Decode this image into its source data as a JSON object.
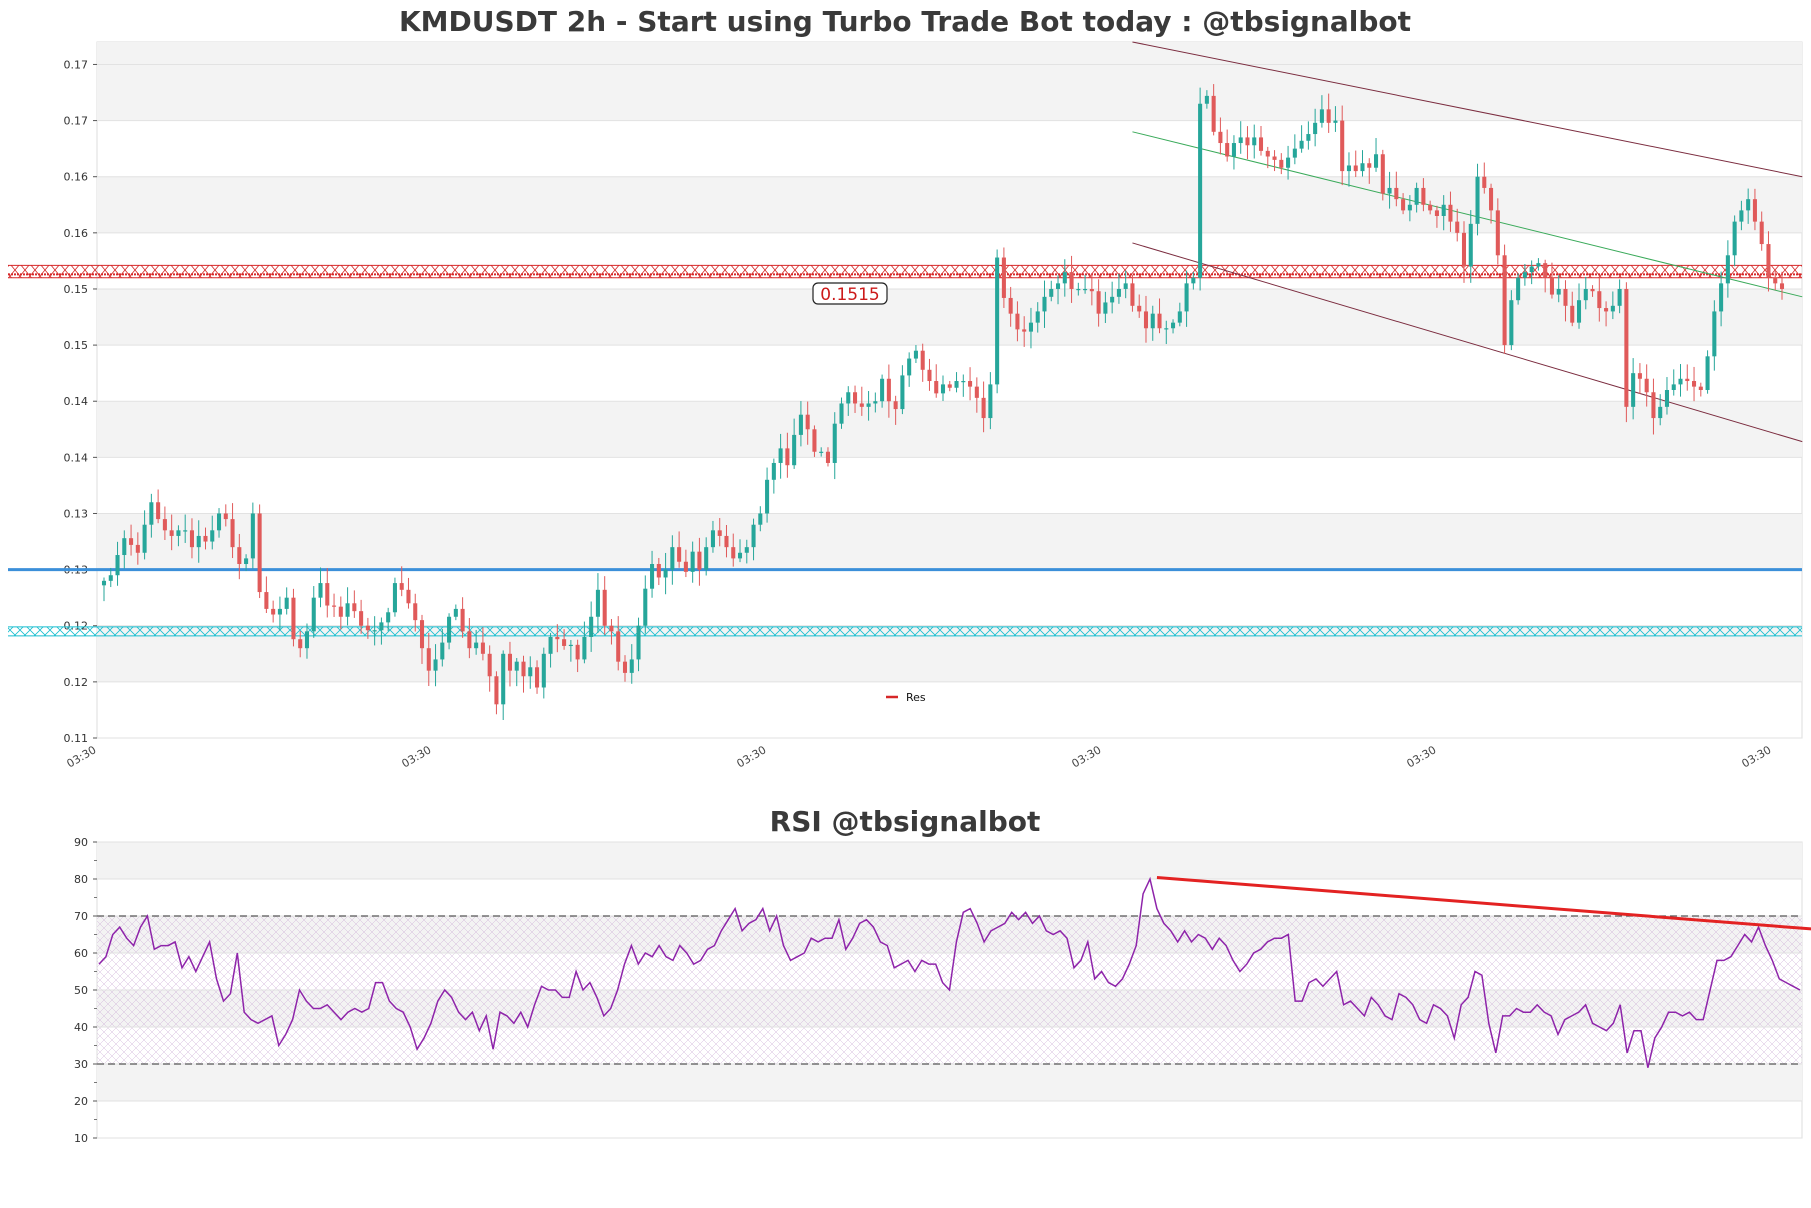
{
  "colors": {
    "up": "#26a69a",
    "down": "#e05a5a",
    "resistance": "#d62728",
    "support": "#17becf",
    "blue_line": "#3b8fd9",
    "channel": "#7b2c3f",
    "trend_green": "#3aaa5a",
    "rsi_line": "#8e24aa",
    "rsi_trend": "#e32222"
  },
  "chart_data": [
    {
      "type": "candlestick",
      "title": "KMDUSDT 2h - Start using Turbo Trade Bot today : @tbsignalbot",
      "ylim": [
        0.11,
        0.172
      ],
      "ytick_values": [
        0.11,
        0.115,
        0.12,
        0.125,
        0.13,
        0.135,
        0.14,
        0.145,
        0.15,
        0.155,
        0.16,
        0.165,
        0.17
      ],
      "ytick_labels": [
        "0.11",
        "0.12",
        "0.12",
        "0.13",
        "0.13",
        "0.14",
        "0.14",
        "0.15",
        "0.15",
        "0.16",
        "0.16",
        "0.17",
        "0.17"
      ],
      "xtick_labels": [
        "03:30",
        "03:30",
        "03:30",
        "03:30",
        "03:30",
        "03:30"
      ],
      "grid": true,
      "legend": {
        "entries": [
          "Res"
        ],
        "placement": "bottom-center"
      },
      "resistance_band": [
        0.151,
        0.1521
      ],
      "resistance_line": 0.1513,
      "resistance_label": "0.1515",
      "support_band": [
        0.1191,
        0.1199
      ],
      "horizontal_line": 0.125,
      "closes": [
        0.124,
        0.1245,
        0.1263,
        0.1278,
        0.1272,
        0.1265,
        0.129,
        0.131,
        0.1295,
        0.1285,
        0.128,
        0.1285,
        0.1285,
        0.127,
        0.128,
        0.1275,
        0.1285,
        0.13,
        0.1295,
        0.127,
        0.1255,
        0.126,
        0.13,
        0.123,
        0.1215,
        0.121,
        0.1215,
        0.1225,
        0.1188,
        0.118,
        0.1195,
        0.1225,
        0.1238,
        0.1218,
        0.1217,
        0.1208,
        0.122,
        0.1213,
        0.12,
        0.1196,
        0.1196,
        0.1203,
        0.1212,
        0.1238,
        0.1232,
        0.122,
        0.1205,
        0.118,
        0.116,
        0.117,
        0.1185,
        0.1208,
        0.1215,
        0.1195,
        0.118,
        0.1185,
        0.1175,
        0.1155,
        0.113,
        0.1175,
        0.116,
        0.1168,
        0.1155,
        0.1163,
        0.1145,
        0.1175,
        0.119,
        0.1188,
        0.1182,
        0.1183,
        0.117,
        0.119,
        0.1208,
        0.1232,
        0.12,
        0.1195,
        0.1168,
        0.1158,
        0.117,
        0.12,
        0.1233,
        0.1255,
        0.1243,
        0.125,
        0.127,
        0.1257,
        0.1248,
        0.1266,
        0.125,
        0.127,
        0.1285,
        0.128,
        0.127,
        0.126,
        0.1265,
        0.127,
        0.129,
        0.13,
        0.133,
        0.1345,
        0.1358,
        0.1343,
        0.137,
        0.1388,
        0.1375,
        0.1355,
        0.1355,
        0.1345,
        0.138,
        0.1398,
        0.1408,
        0.1398,
        0.1395,
        0.1398,
        0.14,
        0.142,
        0.14,
        0.1393,
        0.1423,
        0.1438,
        0.1445,
        0.1428,
        0.1418,
        0.1407,
        0.1415,
        0.1412,
        0.1418,
        0.1418,
        0.1413,
        0.1403,
        0.1385,
        0.1415,
        0.1528,
        0.1492,
        0.1478,
        0.1464,
        0.1462,
        0.147,
        0.148,
        0.1493,
        0.15,
        0.1505,
        0.1515,
        0.15,
        0.15,
        0.15,
        0.1498,
        0.1478,
        0.1488,
        0.1493,
        0.15,
        0.1505,
        0.1485,
        0.148,
        0.1465,
        0.1478,
        0.1465,
        0.1465,
        0.147,
        0.148,
        0.1505,
        0.151,
        0.1665,
        0.1672,
        0.164,
        0.163,
        0.1618,
        0.163,
        0.1635,
        0.1628,
        0.1635,
        0.1623,
        0.1618,
        0.1615,
        0.1608,
        0.1617,
        0.1625,
        0.1632,
        0.1638,
        0.1648,
        0.166,
        0.1648,
        0.165,
        0.1605,
        0.161,
        0.1605,
        0.1612,
        0.1608,
        0.162,
        0.1585,
        0.159,
        0.158,
        0.157,
        0.1575,
        0.159,
        0.1575,
        0.157,
        0.1565,
        0.1575,
        0.156,
        0.155,
        0.152,
        0.1558,
        0.16,
        0.159,
        0.157,
        0.153,
        0.145,
        0.149,
        0.151,
        0.1515,
        0.152,
        0.1523,
        0.151,
        0.1495,
        0.15,
        0.1485,
        0.147,
        0.149,
        0.15,
        0.1498,
        0.1483,
        0.148,
        0.1485,
        0.15,
        0.1395,
        0.1425,
        0.142,
        0.1408,
        0.1385,
        0.1395,
        0.141,
        0.1415,
        0.142,
        0.1418,
        0.1413,
        0.141,
        0.144,
        0.148,
        0.1505,
        0.153,
        0.156,
        0.157,
        0.158,
        0.156,
        0.154,
        0.151,
        0.1505,
        0.15
      ]
    },
    {
      "type": "line",
      "title": "RSI @tbsignalbot",
      "ylim": [
        10,
        90
      ],
      "ytick_values": [
        10,
        20,
        30,
        40,
        50,
        60,
        70,
        80,
        90
      ],
      "ytick_labels": [
        "10",
        "20",
        "30",
        "40",
        "50",
        "60",
        "70",
        "80",
        "90"
      ],
      "overbought": 70,
      "oversold": 30,
      "grid": true,
      "trendline": [
        [
          153,
          80.4
        ],
        [
          249,
          66.3
        ]
      ],
      "values": [
        57,
        59,
        65,
        67,
        64,
        62,
        67,
        70,
        61,
        62,
        62,
        63,
        56,
        59,
        55,
        59,
        63,
        53,
        47,
        49,
        60,
        44,
        42,
        41,
        42,
        43,
        35,
        38,
        42,
        50,
        47,
        45,
        45,
        46,
        44,
        42,
        44,
        45,
        44,
        45,
        52,
        52,
        47,
        45,
        44,
        40,
        34,
        37,
        41,
        47,
        50,
        48,
        44,
        42,
        44,
        39,
        43,
        34,
        44,
        43,
        41,
        44,
        40,
        46,
        51,
        50,
        50,
        48,
        48,
        55,
        50,
        52,
        48,
        43,
        45,
        50,
        57,
        62,
        57,
        60,
        59,
        62,
        59,
        58,
        62,
        60,
        57,
        58,
        61,
        62,
        66,
        69,
        72,
        66,
        68,
        69,
        72,
        66,
        70,
        62,
        58,
        59,
        60,
        64,
        63,
        64,
        64,
        69,
        61,
        64,
        68,
        69,
        67,
        63,
        62,
        56,
        57,
        58,
        55,
        58,
        57,
        57,
        52,
        50,
        63,
        71,
        72,
        68,
        63,
        66,
        67,
        68,
        71,
        69,
        71,
        68,
        70,
        66,
        65,
        66,
        64,
        56,
        58,
        63,
        53,
        55,
        52,
        51,
        53,
        57,
        62,
        76,
        80,
        72,
        68,
        66,
        63,
        66,
        63,
        65,
        64,
        61,
        64,
        62,
        58,
        55,
        57,
        60,
        61,
        63,
        64,
        64,
        65,
        47,
        47,
        52,
        53,
        51,
        53,
        55,
        46,
        47,
        45,
        43,
        48,
        46,
        43,
        42,
        49,
        48,
        46,
        42,
        41,
        46,
        45,
        43,
        37,
        46,
        48,
        55,
        54,
        41,
        33,
        43,
        43,
        45,
        44,
        44,
        46,
        44,
        43,
        38,
        42,
        43,
        44,
        46,
        41,
        40,
        39,
        41,
        46,
        33,
        39,
        39,
        29,
        37,
        40,
        44,
        44,
        43,
        44,
        42,
        42,
        50,
        58,
        58,
        59,
        62,
        65,
        63,
        67,
        62,
        58,
        53,
        52,
        51,
        50
      ]
    }
  ]
}
